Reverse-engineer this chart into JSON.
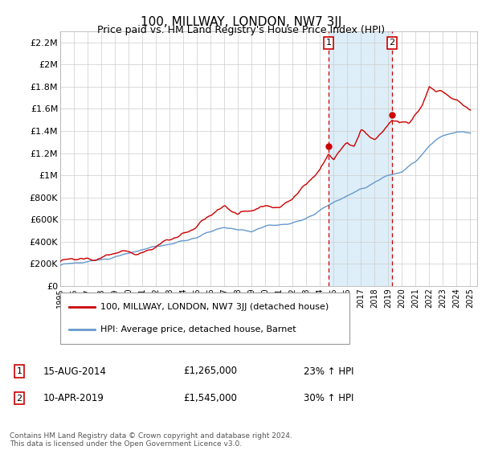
{
  "title": "100, MILLWAY, LONDON, NW7 3JJ",
  "subtitle": "Price paid vs. HM Land Registry's House Price Index (HPI)",
  "legend_line1": "100, MILLWAY, LONDON, NW7 3JJ (detached house)",
  "legend_line2": "HPI: Average price, detached house, Barnet",
  "annotation1_label": "1",
  "annotation1_date": "15-AUG-2014",
  "annotation1_price": "£1,265,000",
  "annotation1_hpi": "23% ↑ HPI",
  "annotation1_year": 2014.62,
  "annotation1_value": 1265000,
  "annotation2_label": "2",
  "annotation2_date": "10-APR-2019",
  "annotation2_price": "£1,545,000",
  "annotation2_hpi": "30% ↑ HPI",
  "annotation2_year": 2019.27,
  "annotation2_value": 1545000,
  "footer": "Contains HM Land Registry data © Crown copyright and database right 2024.\nThis data is licensed under the Open Government Licence v3.0.",
  "line_color_red": "#cc0000",
  "line_color_blue": "#6699cc",
  "shade_color": "#ddeef8",
  "vline_color": "#cc0000",
  "ylim": [
    0,
    2300000
  ],
  "xlim_start": 1995,
  "xlim_end": 2025.5,
  "yticks": [
    0,
    200000,
    400000,
    600000,
    800000,
    1000000,
    1200000,
    1400000,
    1600000,
    1800000,
    2000000,
    2200000
  ],
  "ytick_labels": [
    "£0",
    "£200K",
    "£400K",
    "£600K",
    "£800K",
    "£1M",
    "£1.2M",
    "£1.4M",
    "£1.6M",
    "£1.8M",
    "£2M",
    "£2.2M"
  ],
  "xticks": [
    1995,
    1996,
    1997,
    1998,
    1999,
    2000,
    2001,
    2002,
    2003,
    2004,
    2005,
    2006,
    2007,
    2008,
    2009,
    2010,
    2011,
    2012,
    2013,
    2014,
    2015,
    2016,
    2017,
    2018,
    2019,
    2020,
    2021,
    2022,
    2023,
    2024,
    2025
  ],
  "background_color": "#ffffff",
  "grid_color": "#cccccc"
}
